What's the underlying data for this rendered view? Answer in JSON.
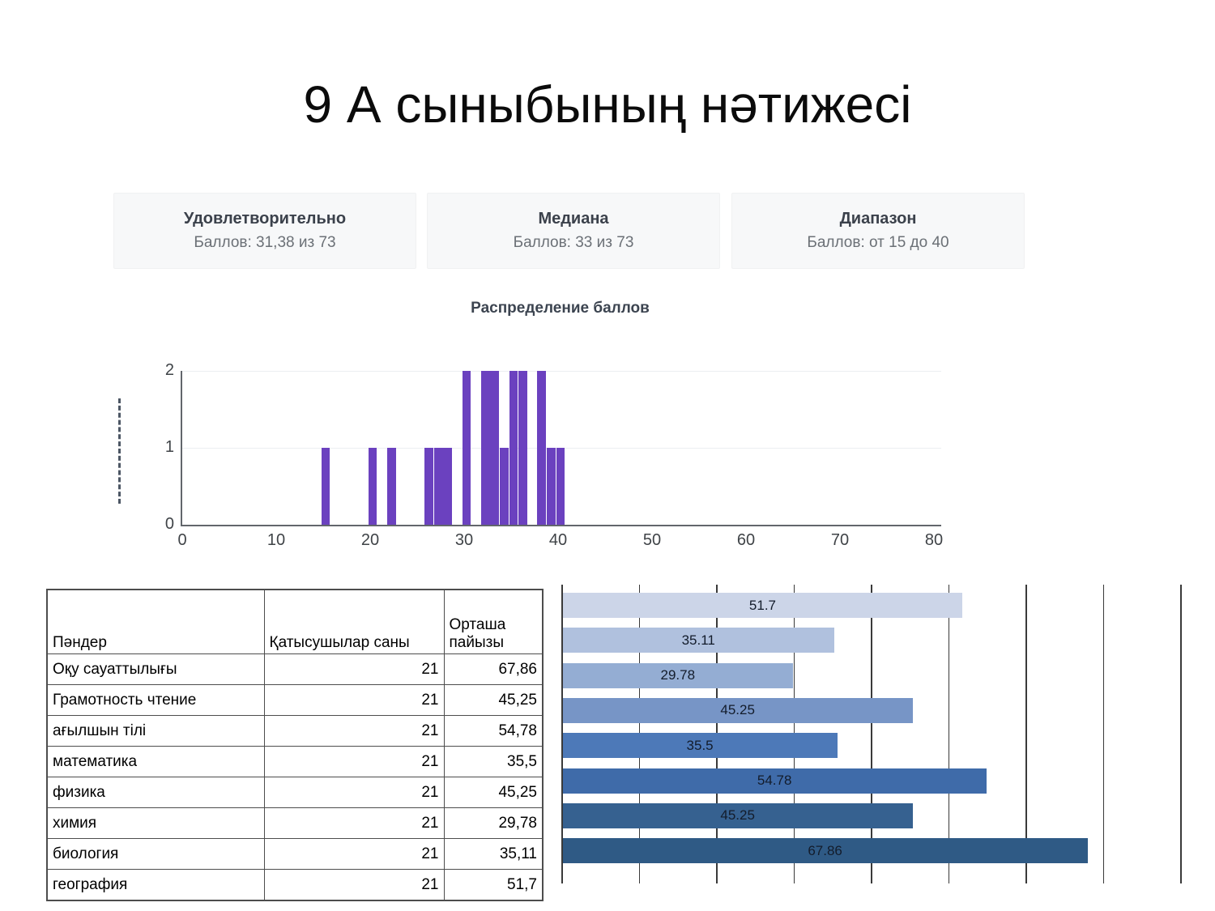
{
  "page": {
    "title": "9 А сыныбының нәтижесі"
  },
  "stat_cards": [
    {
      "title": "Удовлетворительно",
      "subtitle": "Баллов: 31,38 из 73"
    },
    {
      "title": "Медиана",
      "subtitle": "Баллов: 33 из 73"
    },
    {
      "title": "Диапазон",
      "subtitle": "Баллов: от 15 до 40"
    }
  ],
  "chart_data": [
    {
      "type": "bar",
      "title": "Распределение баллов",
      "orientation": "vertical",
      "x": [
        15,
        20,
        22,
        26,
        27,
        28,
        30,
        32,
        33,
        34,
        35,
        36,
        38,
        39,
        40
      ],
      "values": [
        1,
        1,
        1,
        1,
        1,
        1,
        2,
        2,
        2,
        1,
        2,
        2,
        2,
        1,
        1
      ],
      "xlim": [
        0,
        80
      ],
      "ylim": [
        0,
        2
      ],
      "x_ticks": [
        0,
        10,
        20,
        30,
        40,
        50,
        60,
        70,
        80
      ],
      "y_ticks": [
        0,
        1,
        2
      ],
      "bar_color": "#6b41bf",
      "grid": true,
      "legend": "none"
    },
    {
      "type": "bar",
      "orientation": "horizontal",
      "values": [
        51.7,
        35.11,
        29.78,
        45.25,
        35.5,
        54.78,
        45.25,
        67.86
      ],
      "labels": [
        "51.7",
        "35.11",
        "29.78",
        "45.25",
        "35.5",
        "54.78",
        "45.25",
        "67.86"
      ],
      "xlim": [
        0,
        80
      ],
      "gridline_interval": 10,
      "bar_colors": [
        "#ccd5e8",
        "#b0c1de",
        "#94add3",
        "#7795c6",
        "#4d79b8",
        "#3f6ba9",
        "#366190",
        "#2f5a85"
      ],
      "grid": true,
      "legend": "none"
    }
  ],
  "table": {
    "headers": [
      "Пәндер",
      "Қатысушылар саны",
      "Орташа пайызы"
    ],
    "rows": [
      [
        "Оқу сауаттылығы",
        "21",
        "67,86"
      ],
      [
        "Грамотность чтение",
        "21",
        "45,25"
      ],
      [
        "ағылшын тілі",
        "21",
        "54,78"
      ],
      [
        "математика",
        "21",
        "35,5"
      ],
      [
        "физика",
        "21",
        "45,25"
      ],
      [
        "химия",
        "21",
        "29,78"
      ],
      [
        "биология",
        "21",
        "35,11"
      ],
      [
        "география",
        "21",
        "51,7"
      ]
    ]
  }
}
